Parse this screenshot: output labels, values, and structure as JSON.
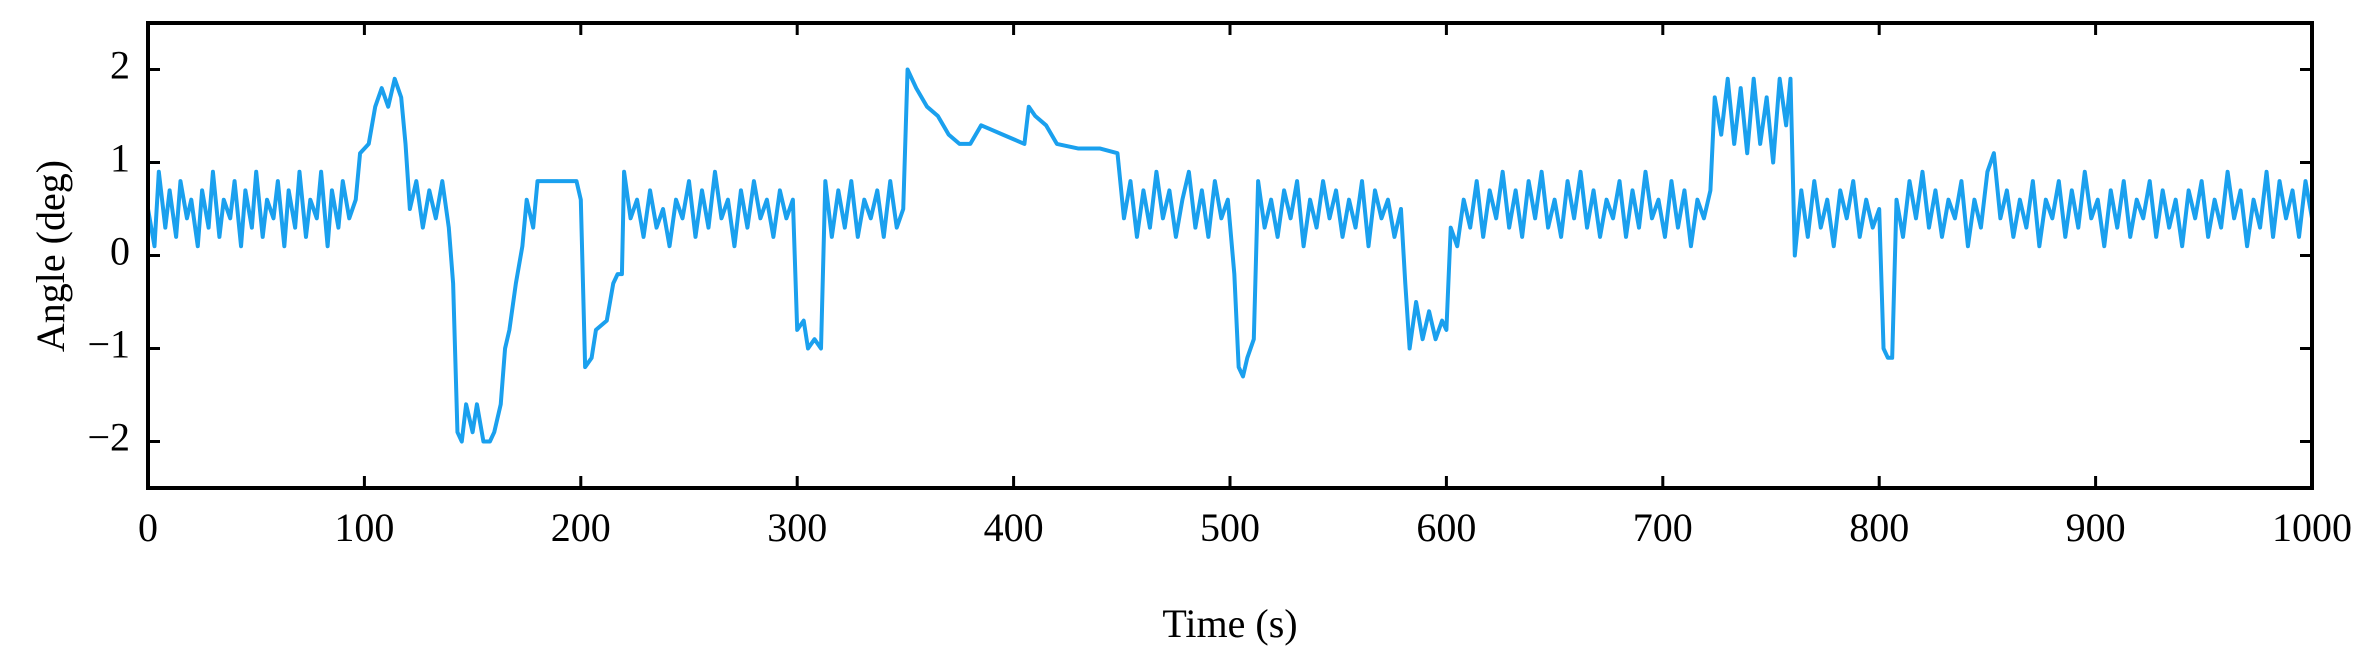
{
  "chart_data": {
    "type": "line",
    "x_label": "Time (s)",
    "y_label": "Angle (deg)",
    "color": "#1aa0ee",
    "xlim": [
      0,
      1000
    ],
    "xticks": [
      0,
      100,
      200,
      300,
      400,
      500,
      600,
      700,
      800,
      900,
      1000
    ],
    "ylim": [
      -2.5,
      2.5
    ],
    "yticks": [
      {
        "value": -2,
        "label": "−2"
      },
      {
        "value": -1,
        "label": "−1"
      },
      0,
      1,
      2
    ],
    "x": [
      0,
      3,
      5,
      8,
      10,
      13,
      15,
      18,
      20,
      23,
      25,
      28,
      30,
      33,
      35,
      38,
      40,
      43,
      45,
      48,
      50,
      53,
      55,
      58,
      60,
      63,
      65,
      68,
      70,
      73,
      75,
      78,
      80,
      83,
      85,
      88,
      90,
      93,
      96,
      98,
      102,
      105,
      108,
      111,
      114,
      117,
      119,
      121,
      124,
      127,
      130,
      133,
      136,
      139,
      141,
      143,
      145,
      147,
      150,
      152,
      155,
      158,
      160,
      163,
      165,
      167,
      170,
      173,
      175,
      178,
      180,
      185,
      190,
      198,
      200,
      202,
      205,
      207,
      212,
      215,
      217,
      219,
      220,
      223,
      226,
      229,
      232,
      235,
      238,
      241,
      244,
      247,
      250,
      253,
      256,
      259,
      262,
      265,
      268,
      271,
      274,
      277,
      280,
      283,
      286,
      289,
      292,
      295,
      298,
      300,
      303,
      305,
      308,
      311,
      313,
      316,
      319,
      322,
      325,
      328,
      331,
      334,
      337,
      340,
      343,
      346,
      349,
      351,
      355,
      360,
      365,
      370,
      375,
      380,
      385,
      390,
      395,
      400,
      405,
      407,
      410,
      415,
      420,
      430,
      440,
      448,
      451,
      454,
      457,
      460,
      463,
      466,
      469,
      472,
      475,
      478,
      481,
      484,
      487,
      490,
      493,
      496,
      499,
      502,
      504,
      506,
      508,
      511,
      513,
      516,
      519,
      522,
      525,
      528,
      531,
      534,
      537,
      540,
      543,
      546,
      549,
      552,
      555,
      558,
      561,
      564,
      567,
      570,
      573,
      576,
      579,
      581,
      583,
      586,
      589,
      592,
      595,
      598,
      600,
      602,
      605,
      608,
      611,
      614,
      617,
      620,
      623,
      626,
      629,
      632,
      635,
      638,
      641,
      644,
      647,
      650,
      653,
      656,
      659,
      662,
      665,
      668,
      671,
      674,
      677,
      680,
      683,
      686,
      689,
      692,
      695,
      698,
      701,
      704,
      707,
      710,
      713,
      716,
      719,
      722,
      724,
      727,
      730,
      733,
      736,
      739,
      742,
      745,
      748,
      751,
      754,
      757,
      759,
      761,
      764,
      767,
      770,
      773,
      776,
      779,
      782,
      785,
      788,
      791,
      794,
      797,
      800,
      802,
      804,
      806,
      808,
      811,
      814,
      817,
      820,
      823,
      826,
      829,
      832,
      835,
      838,
      841,
      844,
      847,
      850,
      853,
      856,
      859,
      862,
      865,
      868,
      871,
      874,
      877,
      880,
      883,
      886,
      889,
      892,
      895,
      898,
      901,
      904,
      907,
      910,
      913,
      916,
      919,
      922,
      925,
      928,
      931,
      934,
      937,
      940,
      943,
      946,
      949,
      952,
      955,
      958,
      961,
      964,
      967,
      970,
      973,
      976,
      979,
      982,
      985,
      988,
      991,
      994,
      997,
      1000
    ],
    "values": [
      0.5,
      0.1,
      0.9,
      0.3,
      0.7,
      0.2,
      0.8,
      0.4,
      0.6,
      0.1,
      0.7,
      0.3,
      0.9,
      0.2,
      0.6,
      0.4,
      0.8,
      0.1,
      0.7,
      0.3,
      0.9,
      0.2,
      0.6,
      0.4,
      0.8,
      0.1,
      0.7,
      0.3,
      0.9,
      0.2,
      0.6,
      0.4,
      0.9,
      0.1,
      0.7,
      0.3,
      0.8,
      0.4,
      0.6,
      1.1,
      1.2,
      1.6,
      1.8,
      1.6,
      1.9,
      1.7,
      1.2,
      0.5,
      0.8,
      0.3,
      0.7,
      0.4,
      0.8,
      0.3,
      -0.3,
      -1.9,
      -2.0,
      -1.6,
      -1.9,
      -1.6,
      -2.0,
      -2.0,
      -1.9,
      -1.6,
      -1.0,
      -0.8,
      -0.3,
      0.1,
      0.6,
      0.3,
      0.8,
      0.8,
      0.8,
      0.8,
      0.6,
      -1.2,
      -1.1,
      -0.8,
      -0.7,
      -0.3,
      -0.2,
      -0.2,
      0.9,
      0.4,
      0.6,
      0.2,
      0.7,
      0.3,
      0.5,
      0.1,
      0.6,
      0.4,
      0.8,
      0.2,
      0.7,
      0.3,
      0.9,
      0.4,
      0.6,
      0.1,
      0.7,
      0.3,
      0.8,
      0.4,
      0.6,
      0.2,
      0.7,
      0.4,
      0.6,
      -0.8,
      -0.7,
      -1.0,
      -0.9,
      -1.0,
      0.8,
      0.2,
      0.7,
      0.3,
      0.8,
      0.2,
      0.6,
      0.4,
      0.7,
      0.2,
      0.8,
      0.3,
      0.5,
      2.0,
      1.8,
      1.6,
      1.5,
      1.3,
      1.2,
      1.2,
      1.4,
      1.35,
      1.3,
      1.25,
      1.2,
      1.6,
      1.5,
      1.4,
      1.2,
      1.15,
      1.15,
      1.1,
      0.4,
      0.8,
      0.2,
      0.7,
      0.3,
      0.9,
      0.4,
      0.7,
      0.2,
      0.6,
      0.9,
      0.3,
      0.7,
      0.2,
      0.8,
      0.4,
      0.6,
      -0.2,
      -1.2,
      -1.3,
      -1.1,
      -0.9,
      0.8,
      0.3,
      0.6,
      0.2,
      0.7,
      0.4,
      0.8,
      0.1,
      0.6,
      0.3,
      0.8,
      0.4,
      0.7,
      0.2,
      0.6,
      0.3,
      0.8,
      0.1,
      0.7,
      0.4,
      0.6,
      0.2,
      0.5,
      -0.3,
      -1.0,
      -0.5,
      -0.9,
      -0.6,
      -0.9,
      -0.7,
      -0.8,
      0.3,
      0.1,
      0.6,
      0.3,
      0.8,
      0.2,
      0.7,
      0.4,
      0.9,
      0.3,
      0.7,
      0.2,
      0.8,
      0.4,
      0.9,
      0.3,
      0.6,
      0.2,
      0.8,
      0.4,
      0.9,
      0.3,
      0.7,
      0.2,
      0.6,
      0.4,
      0.8,
      0.2,
      0.7,
      0.3,
      0.9,
      0.4,
      0.6,
      0.2,
      0.8,
      0.3,
      0.7,
      0.1,
      0.6,
      0.4,
      0.7,
      1.7,
      1.3,
      1.9,
      1.2,
      1.8,
      1.1,
      1.9,
      1.2,
      1.7,
      1.0,
      1.9,
      1.4,
      1.9,
      0.0,
      0.7,
      0.2,
      0.8,
      0.3,
      0.6,
      0.1,
      0.7,
      0.4,
      0.8,
      0.2,
      0.6,
      0.3,
      0.5,
      -1.0,
      -1.1,
      -1.1,
      0.6,
      0.2,
      0.8,
      0.4,
      0.9,
      0.3,
      0.7,
      0.2,
      0.6,
      0.4,
      0.8,
      0.1,
      0.6,
      0.3,
      0.9,
      1.1,
      0.4,
      0.7,
      0.2,
      0.6,
      0.3,
      0.8,
      0.1,
      0.6,
      0.4,
      0.8,
      0.2,
      0.7,
      0.3,
      0.9,
      0.4,
      0.6,
      0.1,
      0.7,
      0.3,
      0.8,
      0.2,
      0.6,
      0.4,
      0.8,
      0.2,
      0.7,
      0.3,
      0.6,
      0.1,
      0.7,
      0.4,
      0.8,
      0.2,
      0.6,
      0.3,
      0.9,
      0.4,
      0.7,
      0.1,
      0.6,
      0.3,
      0.9,
      0.2,
      0.8,
      0.4,
      0.7,
      0.2,
      0.8,
      0.4
    ]
  }
}
